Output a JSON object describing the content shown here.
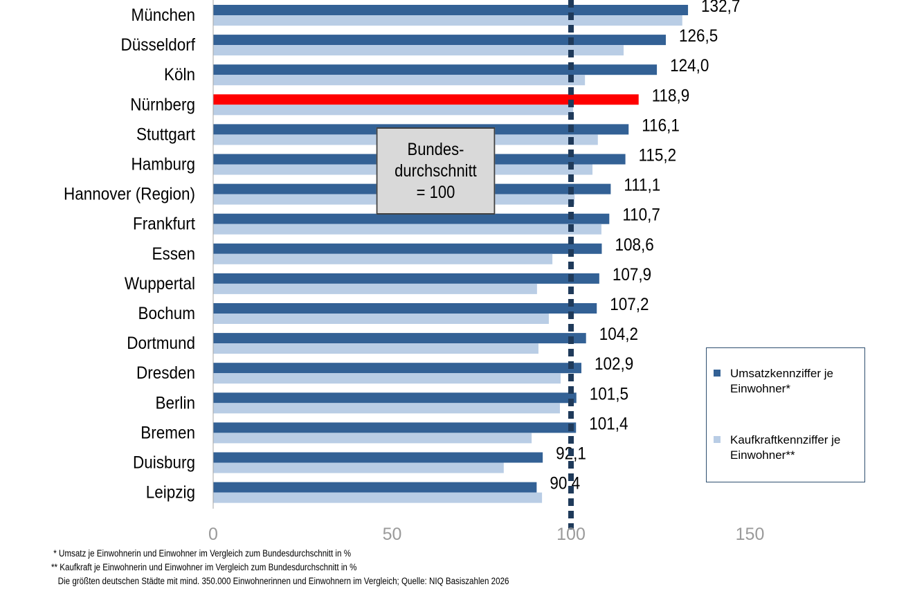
{
  "chart_data": {
    "type": "bar",
    "orientation": "horizontal",
    "categories": [
      "München",
      "Düsseldorf",
      "Köln",
      "Nürnberg",
      "Stuttgart",
      "Hamburg",
      "Hannover (Region)",
      "Frankfurt",
      "Essen",
      "Wuppertal",
      "Bochum",
      "Dortmund",
      "Dresden",
      "Berlin",
      "Bremen",
      "Duisburg",
      "Leipzig"
    ],
    "series": [
      {
        "name": "Umsatzkennziffer je Einwohner*",
        "color": "#336195",
        "values": [
          132.7,
          126.5,
          124.0,
          118.9,
          116.1,
          115.2,
          111.1,
          110.7,
          108.6,
          107.9,
          107.2,
          104.2,
          102.9,
          101.5,
          101.4,
          92.1,
          90.4
        ],
        "labels": [
          "132,7",
          "126,5",
          "124,0",
          "118,9",
          "116,1",
          "115,2",
          "111,1",
          "110,7",
          "108,6",
          "107,9",
          "107,2",
          "104,2",
          "102,9",
          "101,5",
          "101,4",
          "92,1",
          "90,4"
        ]
      },
      {
        "name": "Kaufkraftkennziffer je Einwohner**",
        "color": "#b9cde5",
        "values": [
          131.1,
          114.7,
          103.9,
          100.6,
          107.5,
          106.0,
          101.0,
          108.5,
          94.8,
          90.5,
          93.8,
          90.9,
          97.1,
          96.9,
          89.0,
          81.2,
          91.9
        ]
      }
    ],
    "highlight": {
      "category": "Nürnberg",
      "color": "#ff0000"
    },
    "xlim": [
      0,
      150
    ],
    "xticks": [
      "0",
      "50",
      "100",
      "150"
    ],
    "reference_line": {
      "value": 100,
      "style": "dotted",
      "color": "#1f3a5a"
    },
    "annotation": [
      "Bundes-",
      "durchschnitt",
      "= 100"
    ],
    "legend_position": "right",
    "grid": false
  },
  "footnotes": [
    " * Umsatz je Einwohnerin und Einwohner im Vergleich zum Bundesdurchschnitt in %",
    "** Kaufkraft je Einwohnerin und Einwohner im Vergleich zum Bundesdurchschnitt in %",
    "   Die größten deutschen Städte mit mind. 350.000 Einwohnerinnen und Einwohnern im Vergleich; Quelle: NIQ Basiszahlen 2026"
  ]
}
